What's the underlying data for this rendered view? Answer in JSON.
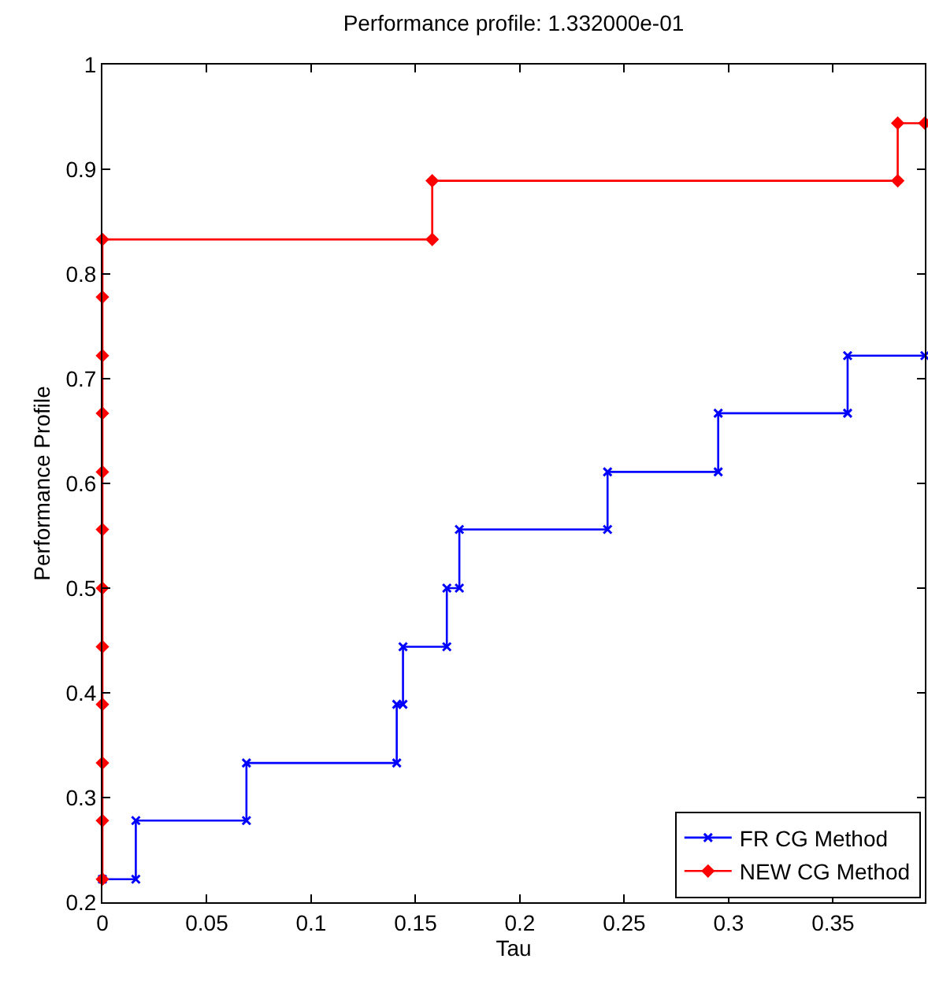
{
  "chart_data": {
    "type": "line",
    "title": "Performance profile: 1.332000e-01",
    "xlabel": "Tau",
    "ylabel": "Performance Profile",
    "xlim": [
      0,
      0.394
    ],
    "xticks": [
      0,
      0.05,
      0.1,
      0.15,
      0.2,
      0.25,
      0.3,
      0.35
    ],
    "ylim": [
      0.2,
      1
    ],
    "yticks": [
      0.2,
      0.3,
      0.4,
      0.5,
      0.6,
      0.7,
      0.8,
      0.9,
      1
    ],
    "legend": "bottom right",
    "line_style": "solid",
    "series": [
      {
        "name": "FR CG Method",
        "color": "#0000ff",
        "marker": "cross",
        "x": [
          0,
          0.016,
          0.016,
          0.069,
          0.069,
          0.141,
          0.141,
          0.144,
          0.144,
          0.165,
          0.165,
          0.171,
          0.171,
          0.242,
          0.242,
          0.295,
          0.295,
          0.357,
          0.357,
          0.394
        ],
        "values": [
          0.222,
          0.222,
          0.278,
          0.278,
          0.333,
          0.333,
          0.389,
          0.389,
          0.444,
          0.444,
          0.5,
          0.5,
          0.556,
          0.556,
          0.611,
          0.611,
          0.667,
          0.667,
          0.722,
          0.722
        ]
      },
      {
        "name": "NEW CG Method",
        "color": "#ff0000",
        "marker": "diamond",
        "x": [
          0,
          0,
          0,
          0,
          0,
          0,
          0,
          0,
          0,
          0,
          0,
          0,
          0.158,
          0.158,
          0.381,
          0.381,
          0.394
        ],
        "values": [
          0.222,
          0.278,
          0.333,
          0.389,
          0.444,
          0.5,
          0.556,
          0.611,
          0.667,
          0.722,
          0.778,
          0.833,
          0.833,
          0.889,
          0.889,
          0.944,
          0.944
        ]
      }
    ]
  }
}
